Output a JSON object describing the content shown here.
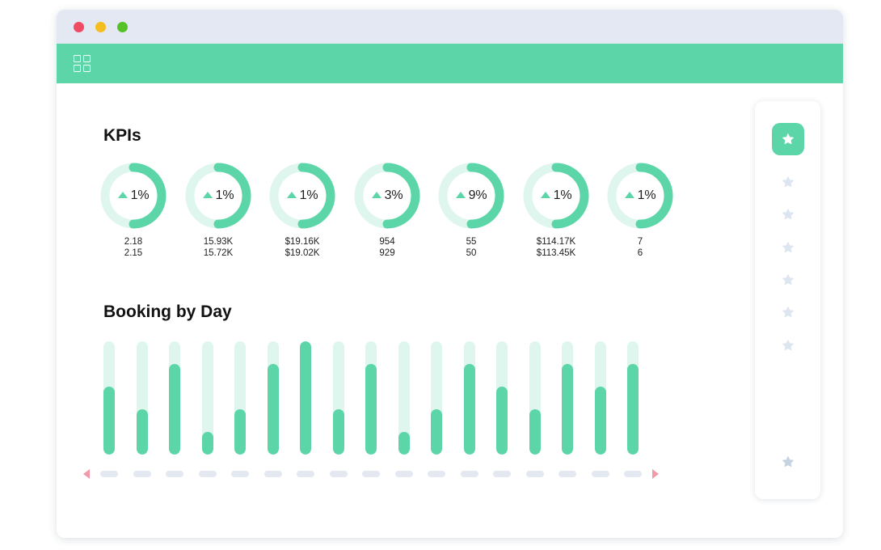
{
  "colors": {
    "accent": "#5cd6a9",
    "accent_light": "#dff6ee",
    "titlebar": "#e3e8f3",
    "star_inactive": "#dde5f1",
    "star_bottom": "#c5d2e2",
    "arrow": "#f29aa9"
  },
  "titlebar": {
    "buttons": [
      "close-icon",
      "minimize-icon",
      "maximize-icon"
    ]
  },
  "topbar": {
    "icon": "grid-icon"
  },
  "kpis": {
    "title": "KPIs",
    "items": [
      {
        "change": "1%",
        "current": "2.18",
        "previous": "2.15"
      },
      {
        "change": "1%",
        "current": "15.93K",
        "previous": "15.72K"
      },
      {
        "change": "1%",
        "current": "$19.16K",
        "previous": "$19.02K"
      },
      {
        "change": "3%",
        "current": "954",
        "previous": "929"
      },
      {
        "change": "9%",
        "current": "55",
        "previous": "50"
      },
      {
        "change": "1%",
        "current": "$114.17K",
        "previous": "$113.45K"
      },
      {
        "change": "1%",
        "current": "7",
        "previous": "6"
      }
    ]
  },
  "booking": {
    "title": "Booking by Day",
    "bar_levels": [
      0.6,
      0.4,
      0.8,
      0.2,
      0.4,
      0.8,
      1.0,
      0.4,
      0.8,
      0.2,
      0.4,
      0.8,
      0.6,
      0.4,
      0.8,
      0.6,
      0.8
    ],
    "nav": {
      "prev_icon": "chevron-left-icon",
      "next_icon": "chevron-right-icon"
    }
  },
  "favorites": {
    "active_icon": "star-icon",
    "item_count": 6,
    "bottom_icon": "star-icon"
  }
}
